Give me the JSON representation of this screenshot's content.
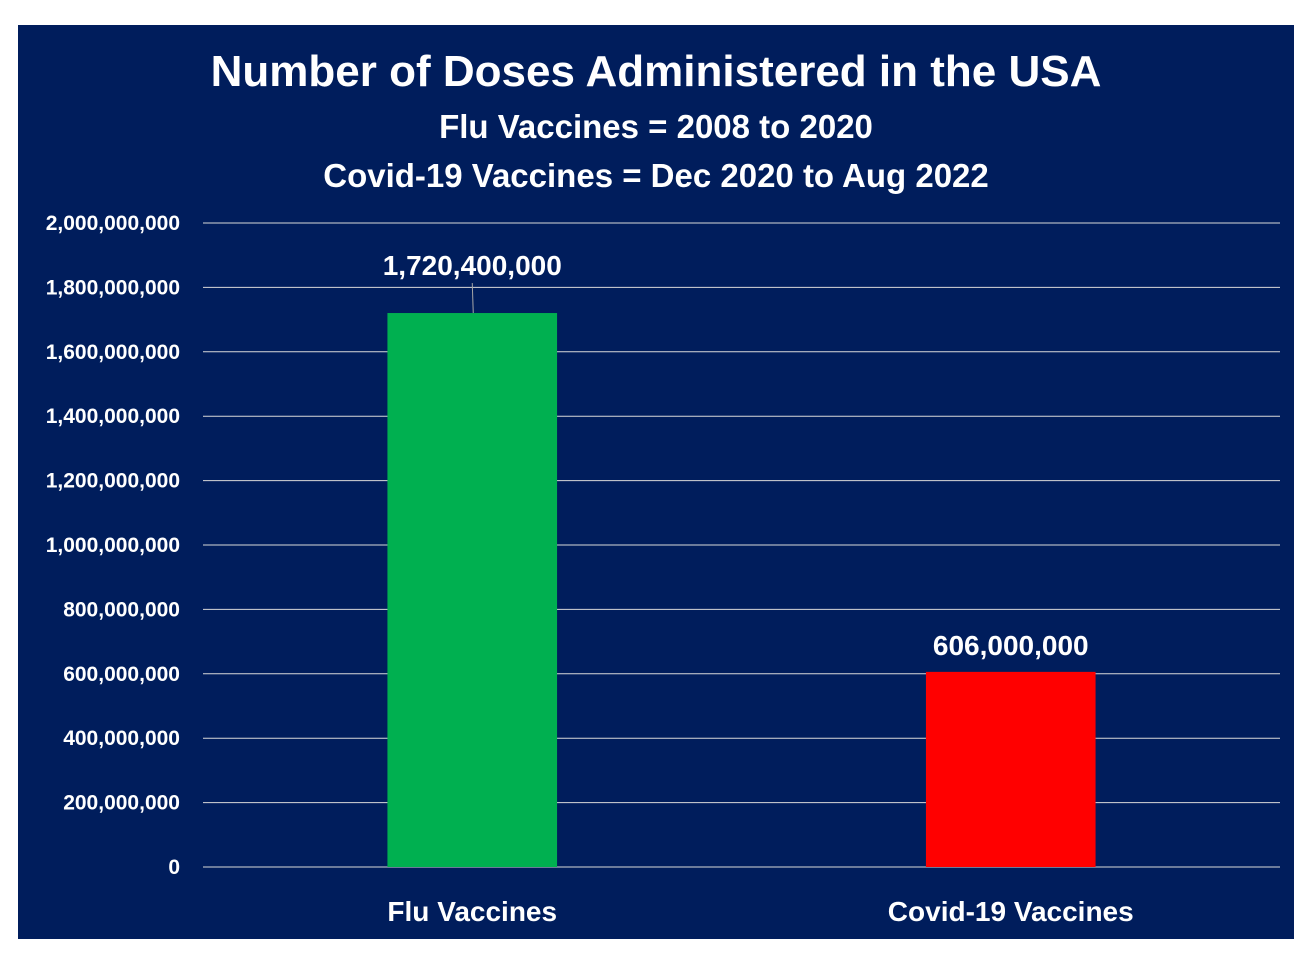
{
  "chart_data": {
    "type": "bar",
    "title": "Number of Doses Administered in the USA",
    "subtitle_lines": [
      "Flu Vaccines = 2008 to 2020",
      "Covid-19 Vaccines = Dec 2020 to Aug 2022"
    ],
    "categories": [
      "Flu Vaccines",
      "Covid-19 Vaccines"
    ],
    "values": [
      1720400000,
      606000000
    ],
    "data_labels": [
      "1,720,400,000",
      "606,000,000"
    ],
    "bar_colors": [
      "#00b050",
      "#ff0000"
    ],
    "ylim": [
      0,
      2000000000
    ],
    "yticks": [
      0,
      200000000,
      400000000,
      600000000,
      800000000,
      1000000000,
      1200000000,
      1400000000,
      1600000000,
      1800000000,
      2000000000
    ],
    "ytick_labels": [
      "0",
      "200,000,000",
      "400,000,000",
      "600,000,000",
      "800,000,000",
      "1,000,000,000",
      "1,200,000,000",
      "1,400,000,000",
      "1,600,000,000",
      "1,800,000,000",
      "2,000,000,000"
    ],
    "xlabel": "",
    "ylabel": "",
    "grid": true,
    "legend": "none",
    "background_color": "#001d5c",
    "text_color": "#ffffff"
  }
}
